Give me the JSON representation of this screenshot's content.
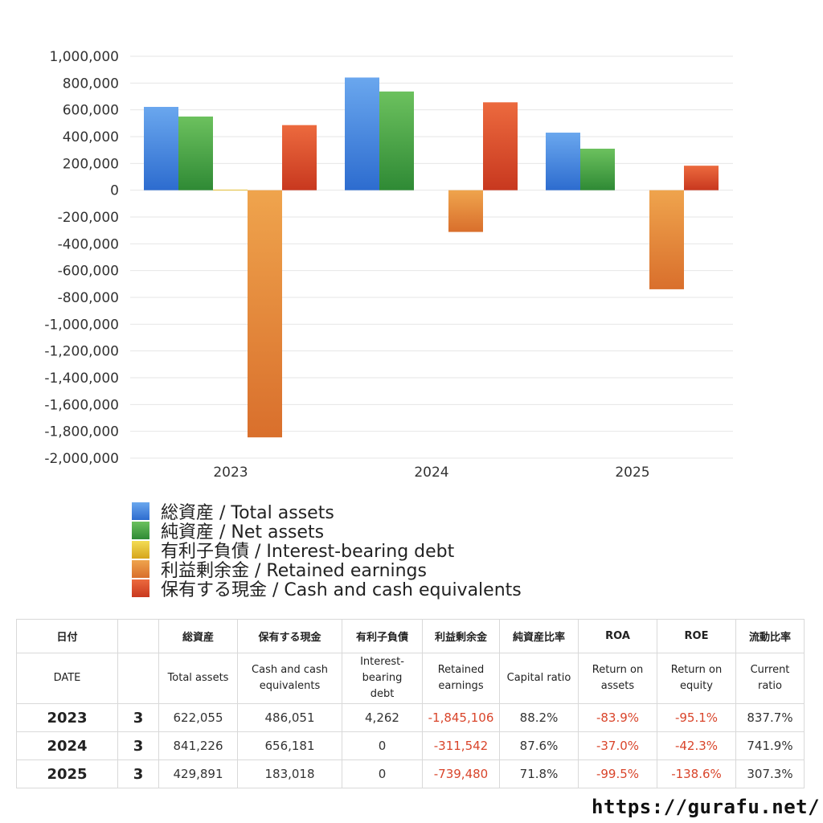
{
  "chart_data": {
    "type": "bar",
    "categories": [
      "2023",
      "2024",
      "2025"
    ],
    "ylim": [
      -2000000,
      1000000
    ],
    "ytick_step": 200000,
    "yticks": [
      "1,000,000",
      "800,000",
      "600,000",
      "400,000",
      "200,000",
      "0",
      "-200,000",
      "-400,000",
      "-600,000",
      "-800,000",
      "-1,000,000",
      "-1,200,000",
      "-1,400,000",
      "-1,600,000",
      "-1,800,000",
      "-2,000,000"
    ],
    "grid": true,
    "legend_position": "bottom-left",
    "series": [
      {
        "name": "総資産 / Total assets",
        "color": "#3d7fdc",
        "values": [
          622055,
          841226,
          429891
        ]
      },
      {
        "name": "純資産 / Net assets",
        "color": "#45a049",
        "values": [
          550000,
          737000,
          310000
        ]
      },
      {
        "name": "有利子負債 / Interest-bearing debt",
        "color": "#e8c22e",
        "values": [
          4262,
          0,
          0
        ]
      },
      {
        "name": "利益剰余金 / Retained earnings",
        "color": "#e2873a",
        "values": [
          -1845106,
          -311542,
          -739480
        ]
      },
      {
        "name": "保有する現金 /  Cash and cash equivalents",
        "color": "#d9452b",
        "values": [
          486051,
          656181,
          183018
        ]
      }
    ]
  },
  "table": {
    "header_jp": [
      "日付",
      "",
      "総資産",
      "保有する現金",
      "有利子負債",
      "利益剰余金",
      "純資産比率",
      "ROA",
      "ROE",
      "流動比率"
    ],
    "header_en": [
      "DATE",
      "",
      "Total assets",
      "Cash and cash\nequivalents",
      "Interest-\nbearing\ndebt",
      "Retained\nearnings",
      "Capital ratio",
      "Return on\nassets",
      "Return on\nequity",
      "Current\nratio"
    ],
    "rows": [
      {
        "year": "2023",
        "q": "3",
        "total_assets": "622,055",
        "cash": "486,051",
        "debt": "4,262",
        "retained": "-1,845,106",
        "capital_ratio": "88.2%",
        "roa": "-83.9%",
        "roe": "-95.1%",
        "current_ratio": "837.7%"
      },
      {
        "year": "2024",
        "q": "3",
        "total_assets": "841,226",
        "cash": "656,181",
        "debt": "0",
        "retained": "-311,542",
        "capital_ratio": "87.6%",
        "roa": "-37.0%",
        "roe": "-42.3%",
        "current_ratio": "741.9%"
      },
      {
        "year": "2025",
        "q": "3",
        "total_assets": "429,891",
        "cash": "183,018",
        "debt": "0",
        "retained": "-739,480",
        "capital_ratio": "71.8%",
        "roa": "-99.5%",
        "roe": "-138.6%",
        "current_ratio": "307.3%"
      }
    ]
  },
  "footer": {
    "url": "https://gurafu.net/"
  }
}
